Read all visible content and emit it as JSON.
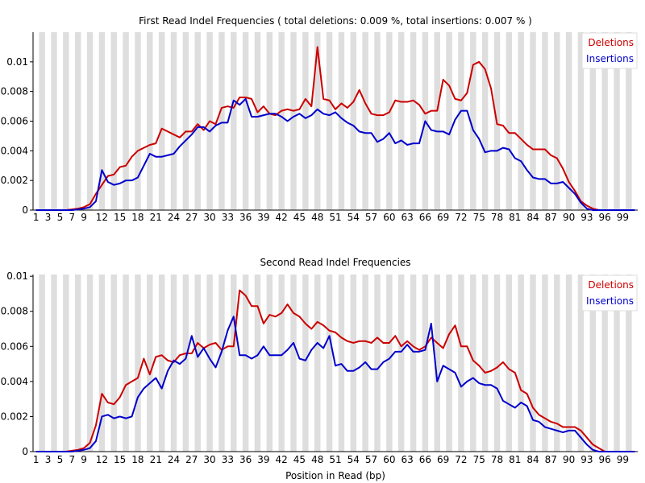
{
  "chart_data": [
    {
      "type": "line",
      "title": "First Read Indel Frequencies ( total deletions: 0.009 %, total insertions: 0.007 % )",
      "xlabel": "",
      "ylabel": "",
      "x_tick_labels": [
        "1",
        "3",
        "5",
        "7",
        "9",
        "12",
        "15",
        "18",
        "21",
        "24",
        "27",
        "30",
        "33",
        "36",
        "39",
        "42",
        "45",
        "48",
        "51",
        "54",
        "57",
        "60",
        "63",
        "66",
        "69",
        "72",
        "75",
        "78",
        "81",
        "84",
        "87",
        "90",
        "93",
        "96",
        "99"
      ],
      "y_tick_labels": [
        "0",
        "0.002",
        "0.004",
        "0.006",
        "0.008",
        "0.01"
      ],
      "ylim": [
        0,
        0.012
      ],
      "grid": "alternating vertical bands",
      "legend_position": "top-right",
      "series": [
        {
          "name": "Deletions",
          "color": "#cc0000",
          "values": [
            0,
            0,
            0,
            0,
            0,
            0,
            5e-05,
            0.0001,
            0.0002,
            0.0004,
            0.0011,
            0.0017,
            0.0023,
            0.0024,
            0.0029,
            0.003,
            0.0036,
            0.004,
            0.0042,
            0.0044,
            0.0045,
            0.0055,
            0.0053,
            0.0051,
            0.0049,
            0.0053,
            0.0053,
            0.0058,
            0.0054,
            0.006,
            0.0058,
            0.0069,
            0.007,
            0.0069,
            0.0076,
            0.0076,
            0.0075,
            0.0066,
            0.007,
            0.0065,
            0.0064,
            0.0067,
            0.0068,
            0.0067,
            0.0068,
            0.0075,
            0.007,
            0.011,
            0.0075,
            0.0074,
            0.0068,
            0.0072,
            0.0069,
            0.0073,
            0.0081,
            0.0072,
            0.0065,
            0.0064,
            0.0064,
            0.0066,
            0.0074,
            0.0073,
            0.0073,
            0.0074,
            0.0071,
            0.0065,
            0.0067,
            0.0067,
            0.0088,
            0.0084,
            0.0075,
            0.0074,
            0.0079,
            0.0098,
            0.01,
            0.0095,
            0.0082,
            0.0058,
            0.0057,
            0.0052,
            0.0052,
            0.0048,
            0.0044,
            0.0041,
            0.0041,
            0.0041,
            0.0037,
            0.0035,
            0.0028,
            0.0019,
            0.0013,
            0.0006,
            0.0003,
            0.0001,
            0,
            0,
            0,
            0,
            0,
            0,
            0
          ]
        },
        {
          "name": "Insertions",
          "color": "#0000cc",
          "values": [
            0,
            0,
            0,
            0,
            0,
            0,
            0,
            5e-05,
            0.0001,
            0.0002,
            0.0006,
            0.0027,
            0.0019,
            0.0017,
            0.0018,
            0.002,
            0.002,
            0.0022,
            0.003,
            0.0038,
            0.0036,
            0.0036,
            0.0037,
            0.0038,
            0.0043,
            0.0047,
            0.0051,
            0.0056,
            0.0056,
            0.0053,
            0.0057,
            0.0059,
            0.0059,
            0.0074,
            0.0071,
            0.0075,
            0.0063,
            0.0063,
            0.0064,
            0.0065,
            0.0065,
            0.0063,
            0.006,
            0.0063,
            0.0065,
            0.0062,
            0.0064,
            0.0068,
            0.0065,
            0.0064,
            0.0066,
            0.0062,
            0.0059,
            0.0057,
            0.0053,
            0.0052,
            0.0052,
            0.0046,
            0.0048,
            0.0052,
            0.0045,
            0.0047,
            0.0044,
            0.0045,
            0.0045,
            0.006,
            0.0054,
            0.0053,
            0.0053,
            0.0051,
            0.0061,
            0.0067,
            0.0067,
            0.0054,
            0.0048,
            0.0039,
            0.004,
            0.004,
            0.0042,
            0.0041,
            0.0035,
            0.0033,
            0.0027,
            0.0022,
            0.0021,
            0.0021,
            0.0018,
            0.0018,
            0.0019,
            0.0015,
            0.0011,
            0.0005,
            0.0001,
            0,
            0,
            0,
            0,
            0,
            0,
            0,
            0
          ]
        }
      ]
    },
    {
      "type": "line",
      "title": "Second Read Indel Frequencies",
      "xlabel": "Position in Read (bp)",
      "ylabel": "",
      "x_tick_labels": [
        "1",
        "3",
        "5",
        "7",
        "9",
        "12",
        "15",
        "18",
        "21",
        "24",
        "27",
        "30",
        "33",
        "36",
        "39",
        "42",
        "45",
        "48",
        "51",
        "54",
        "57",
        "60",
        "63",
        "66",
        "69",
        "72",
        "75",
        "78",
        "81",
        "84",
        "87",
        "90",
        "93",
        "96",
        "99"
      ],
      "y_tick_labels": [
        "0",
        "0.002",
        "0.004",
        "0.006",
        "0.008",
        "0.01"
      ],
      "ylim": [
        0,
        0.0101
      ],
      "grid": "alternating vertical bands",
      "legend_position": "top-right",
      "series": [
        {
          "name": "Deletions",
          "color": "#cc0000",
          "values": [
            0,
            0,
            0,
            0,
            0,
            0,
            5e-05,
            0.0001,
            0.0002,
            0.0005,
            0.0015,
            0.0033,
            0.0028,
            0.0027,
            0.0031,
            0.0038,
            0.004,
            0.0042,
            0.0053,
            0.0044,
            0.0054,
            0.0055,
            0.0052,
            0.0051,
            0.0055,
            0.0056,
            0.0056,
            0.0062,
            0.0059,
            0.0061,
            0.0062,
            0.0058,
            0.006,
            0.006,
            0.0092,
            0.0089,
            0.0083,
            0.0083,
            0.0073,
            0.0078,
            0.0077,
            0.0079,
            0.0084,
            0.0079,
            0.0077,
            0.0073,
            0.007,
            0.0074,
            0.0072,
            0.0069,
            0.0068,
            0.0065,
            0.0063,
            0.0062,
            0.0063,
            0.0063,
            0.0062,
            0.0065,
            0.0062,
            0.0062,
            0.0066,
            0.006,
            0.0063,
            0.006,
            0.0058,
            0.006,
            0.0065,
            0.0062,
            0.0059,
            0.0067,
            0.0072,
            0.006,
            0.006,
            0.0052,
            0.0049,
            0.0045,
            0.0046,
            0.0048,
            0.0051,
            0.0047,
            0.0045,
            0.0035,
            0.0033,
            0.0025,
            0.0021,
            0.0019,
            0.0017,
            0.0016,
            0.0014,
            0.0014,
            0.0014,
            0.0012,
            0.0008,
            0.0004,
            0.0002,
            0,
            0,
            0,
            0,
            0,
            0
          ]
        },
        {
          "name": "Insertions",
          "color": "#0000cc",
          "values": [
            0,
            0,
            0,
            0,
            0,
            0,
            0,
            5e-05,
            0.0001,
            0.0002,
            0.0006,
            0.002,
            0.0021,
            0.0019,
            0.002,
            0.0019,
            0.002,
            0.0031,
            0.0036,
            0.0039,
            0.0042,
            0.0036,
            0.0046,
            0.0052,
            0.005,
            0.0053,
            0.0066,
            0.0054,
            0.0059,
            0.0053,
            0.0048,
            0.0057,
            0.0069,
            0.0077,
            0.0055,
            0.0055,
            0.0053,
            0.0055,
            0.006,
            0.0055,
            0.0055,
            0.0055,
            0.0058,
            0.0062,
            0.0053,
            0.0052,
            0.0058,
            0.0062,
            0.0059,
            0.0066,
            0.0049,
            0.005,
            0.0046,
            0.0046,
            0.0048,
            0.0051,
            0.0047,
            0.0047,
            0.0051,
            0.0053,
            0.0057,
            0.0057,
            0.0061,
            0.0057,
            0.0057,
            0.0058,
            0.0073,
            0.004,
            0.0049,
            0.0047,
            0.0045,
            0.0037,
            0.004,
            0.0042,
            0.0039,
            0.0038,
            0.0038,
            0.0036,
            0.0029,
            0.0027,
            0.0025,
            0.0028,
            0.0026,
            0.0018,
            0.0017,
            0.0014,
            0.0013,
            0.0012,
            0.0011,
            0.0012,
            0.0012,
            0.0008,
            0.0004,
            0.0001,
            0,
            0,
            0,
            0,
            0,
            0,
            0
          ]
        }
      ]
    }
  ]
}
